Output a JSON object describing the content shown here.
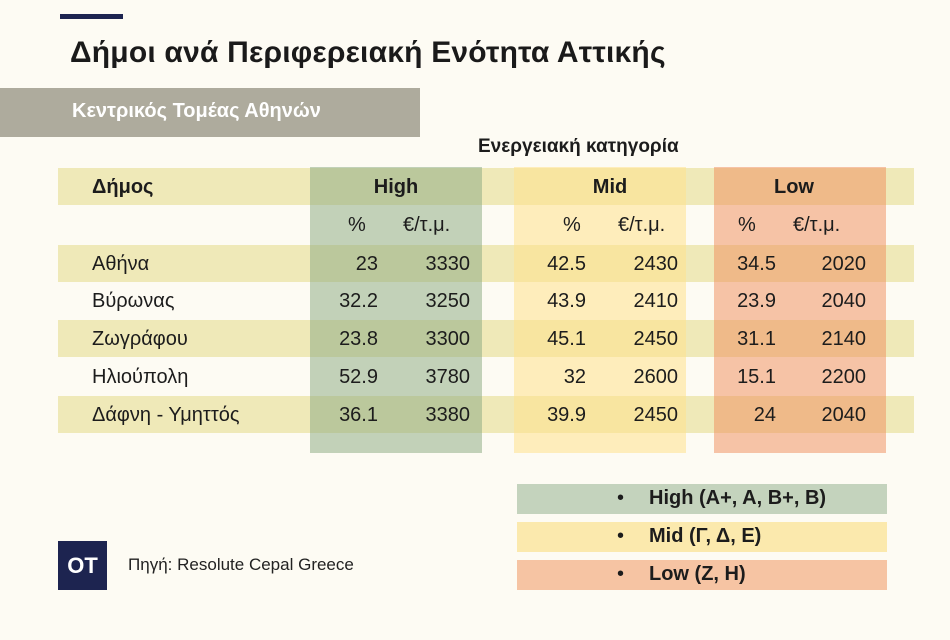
{
  "title": "Δήμοι ανά Περιφερειακή Ενότητα Αττικής",
  "subtitle": "Κεντρικός Τομέας Αθηνών",
  "energy_category_label": "Ενεργειακή κατηγορία",
  "table": {
    "municipality_header": "Δήμος",
    "groups": [
      "High",
      "Mid",
      "Low"
    ],
    "sub_headers": [
      "%",
      "€/τ.μ."
    ],
    "rows": [
      {
        "name": "Αθήνα",
        "high_pct": "23",
        "high_price": "3330",
        "mid_pct": "42.5",
        "mid_price": "2430",
        "low_pct": "34.5",
        "low_price": "2020"
      },
      {
        "name": "Βύρωνας",
        "high_pct": "32.2",
        "high_price": "3250",
        "mid_pct": "43.9",
        "mid_price": "2410",
        "low_pct": "23.9",
        "low_price": "2040"
      },
      {
        "name": "Ζωγράφου",
        "high_pct": "23.8",
        "high_price": "3300",
        "mid_pct": "45.1",
        "mid_price": "2450",
        "low_pct": "31.1",
        "low_price": "2140"
      },
      {
        "name": "Ηλιούπολη",
        "high_pct": "52.9",
        "high_price": "3780",
        "mid_pct": "32",
        "mid_price": "2600",
        "low_pct": "15.1",
        "low_price": "2200"
      },
      {
        "name": "Δάφνη - Υμηττός",
        "high_pct": "36.1",
        "high_price": "3380",
        "mid_pct": "39.9",
        "mid_price": "2450",
        "low_pct": "24",
        "low_price": "2040"
      }
    ]
  },
  "legend": [
    {
      "text": "High (A+, A, B+, B)",
      "color": "#c4d3bd"
    },
    {
      "text": "Mid (Γ, Δ, Ε)",
      "color": "#fbe9ad"
    },
    {
      "text": "Low (Ζ, Η)",
      "color": "#f6c4a3"
    }
  ],
  "bullet": "•",
  "logo_text": "OT",
  "source": "Πηγή: Resolute Cepal Greece",
  "colors": {
    "navy": "#1d2450",
    "header_band": "#aeab9d",
    "zebra": "#efe9b8"
  }
}
